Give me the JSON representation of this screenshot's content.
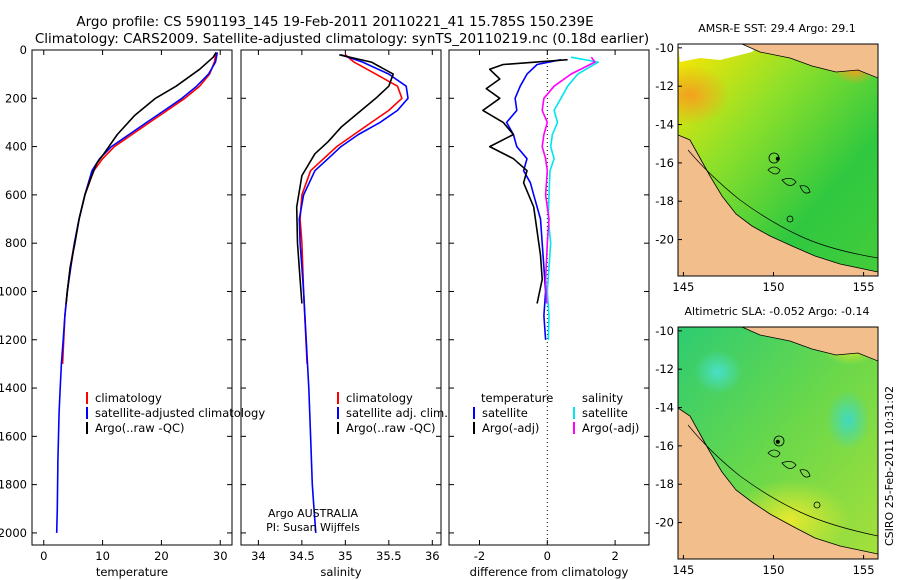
{
  "title": {
    "line1": "Argo profile: CS 5901193_145 19-Feb-2011 20110221_41 15.785S 150.239E",
    "line2": "Climatology: CARS2009. Satellite-adjusted climatology: synTS_20110219.nc (0.18d earlier)"
  },
  "colors": {
    "climatology": "#ff0000",
    "satellite": "#0000ff",
    "argo": "#000000",
    "satellite_salinity": "#00e5ee",
    "argo_salinity": "#ff00ff",
    "land": "#f2bf8c"
  },
  "chart_data": [
    {
      "id": "temperature",
      "type": "line",
      "xlabel": "temperature",
      "ylabel": "",
      "xlim": [
        -2,
        32
      ],
      "ylim": [
        2050,
        0
      ],
      "xticks": [
        0,
        10,
        20,
        30
      ],
      "yticks": [
        0,
        200,
        400,
        600,
        800,
        1000,
        1200,
        1400,
        1600,
        1800,
        2000
      ],
      "legend": [
        "climatology",
        "satellite-adjusted climatology",
        "Argo(..raw -QC)"
      ],
      "series": [
        {
          "name": "climatology",
          "color": "#ff0000",
          "x": [
            29.3,
            29.0,
            28.2,
            26.5,
            24.0,
            21.0,
            18.0,
            15.0,
            12.0,
            10.0,
            8.5,
            7.0,
            6.0,
            5.2,
            4.5,
            4.0,
            3.6,
            3.2
          ],
          "y": [
            10,
            50,
            100,
            150,
            200,
            250,
            300,
            350,
            400,
            450,
            500,
            600,
            700,
            800,
            900,
            1000,
            1100,
            1300
          ]
        },
        {
          "name": "satellite-adjusted climatology",
          "color": "#0000ff",
          "x": [
            29.5,
            29.2,
            28.0,
            26.0,
            23.5,
            20.5,
            17.5,
            14.5,
            11.5,
            9.5,
            8.2,
            7.0,
            6.0,
            5.2,
            4.6,
            4.0,
            3.6,
            3.3,
            3.0,
            2.8,
            2.6,
            2.4,
            2.3,
            2.2
          ],
          "y": [
            10,
            50,
            100,
            150,
            200,
            250,
            300,
            350,
            400,
            450,
            500,
            600,
            700,
            800,
            900,
            1000,
            1100,
            1200,
            1300,
            1400,
            1500,
            1700,
            1900,
            2000
          ]
        },
        {
          "name": "Argo(..raw -QC)",
          "color": "#000000",
          "x": [
            29.3,
            28.8,
            26.5,
            22.5,
            19.0,
            15.5,
            12.5,
            10.5,
            9.0,
            8.0,
            7.0,
            6.0,
            5.3,
            4.5,
            4.0,
            3.8
          ],
          "y": [
            10,
            30,
            80,
            150,
            200,
            270,
            350,
            420,
            470,
            530,
            600,
            700,
            800,
            900,
            1000,
            1050
          ]
        }
      ]
    },
    {
      "id": "salinity",
      "type": "line",
      "xlabel": "salinity",
      "ylabel": "",
      "xlim": [
        33.8,
        36.1
      ],
      "ylim": [
        2050,
        0
      ],
      "xticks": [
        34,
        34.5,
        35,
        35.5,
        36
      ],
      "yticks": [
        0,
        200,
        400,
        600,
        800,
        1000,
        1200,
        1400,
        1600,
        1800,
        2000
      ],
      "legend": [
        "climatology",
        "satellite adj. clim.",
        "Argo(..raw -QC)"
      ],
      "series": [
        {
          "name": "climatology",
          "color": "#ff0000",
          "x": [
            35.0,
            35.1,
            35.35,
            35.6,
            35.65,
            35.5,
            35.3,
            35.1,
            34.9,
            34.75,
            34.6,
            34.5,
            34.48,
            34.5,
            34.52,
            34.56
          ],
          "y": [
            20,
            50,
            100,
            150,
            200,
            250,
            300,
            350,
            400,
            450,
            500,
            600,
            700,
            800,
            1000,
            1300
          ]
        },
        {
          "name": "satellite adj. clim.",
          "color": "#0000ff",
          "x": [
            34.95,
            35.2,
            35.5,
            35.7,
            35.72,
            35.6,
            35.4,
            35.15,
            34.95,
            34.8,
            34.65,
            34.52,
            34.47,
            34.48,
            34.5,
            34.52,
            34.55,
            34.58,
            34.6,
            34.62,
            34.64,
            34.66
          ],
          "y": [
            20,
            50,
            100,
            150,
            200,
            250,
            300,
            350,
            400,
            450,
            500,
            600,
            700,
            800,
            900,
            1000,
            1200,
            1400,
            1600,
            1800,
            1900,
            2000
          ]
        },
        {
          "name": "Argo(..raw -QC)",
          "color": "#000000",
          "x": [
            34.93,
            35.3,
            35.55,
            35.5,
            35.35,
            35.15,
            34.95,
            34.8,
            34.65,
            34.5,
            34.44,
            34.45,
            34.48,
            34.5
          ],
          "y": [
            20,
            50,
            100,
            150,
            200,
            260,
            320,
            380,
            430,
            520,
            650,
            800,
            950,
            1050
          ]
        }
      ]
    },
    {
      "id": "difference",
      "type": "line",
      "xlabel": "difference from climatology",
      "ylabel": "",
      "xlim": [
        -2.9,
        3.0
      ],
      "ylim": [
        2050,
        0
      ],
      "xticks": [
        -2,
        0,
        2
      ],
      "yticks": [
        0,
        200,
        400,
        600,
        800,
        1000,
        1200,
        1400,
        1600,
        1800,
        2000
      ],
      "legend_groups": [
        {
          "heading": "temperature",
          "items": [
            "satellite",
            "Argo(-adj)"
          ]
        },
        {
          "heading": "salinity",
          "items": [
            "satellite",
            "Argo(-adj)"
          ]
        }
      ],
      "zero_line": 0,
      "series": [
        {
          "name": "temperature satellite",
          "color": "#0000ff",
          "x": [
            0.4,
            -0.3,
            -0.6,
            -0.8,
            -0.95,
            -0.9,
            -1.2,
            -1.0,
            -0.9,
            -0.6,
            -0.7,
            -0.5,
            -0.4,
            -0.2,
            -0.15,
            -0.1,
            -0.05,
            -0.1,
            -0.05
          ],
          "y": [
            40,
            60,
            100,
            150,
            200,
            250,
            300,
            350,
            400,
            450,
            500,
            550,
            600,
            700,
            800,
            900,
            1000,
            1100,
            1200
          ]
        },
        {
          "name": "temperature Argo(-adj)",
          "color": "#000000",
          "x": [
            0.6,
            -1.3,
            -1.7,
            -1.4,
            -1.8,
            -1.4,
            -1.9,
            -1.3,
            -1.0,
            -1.7,
            -1.0,
            -0.6,
            -0.7,
            -0.4,
            -0.3,
            -0.2,
            -0.15,
            -0.3
          ],
          "y": [
            40,
            60,
            80,
            120,
            160,
            200,
            250,
            300,
            350,
            400,
            450,
            500,
            550,
            650,
            750,
            850,
            950,
            1050
          ]
        },
        {
          "name": "salinity satellite",
          "color": "#00e5ee",
          "x": [
            0.7,
            1.5,
            0.9,
            0.6,
            0.4,
            0.2,
            0.3,
            0.15,
            0.1,
            0.2,
            0.08,
            0.05,
            0.03,
            0.1,
            0.05,
            0.0,
            0.05,
            0.03
          ],
          "y": [
            30,
            50,
            100,
            150,
            200,
            250,
            300,
            350,
            400,
            450,
            500,
            600,
            700,
            800,
            900,
            1000,
            1100,
            1200
          ]
        },
        {
          "name": "salinity Argo(-adj)",
          "color": "#ff00ff",
          "x": [
            1.3,
            1.4,
            0.7,
            0.2,
            -0.1,
            -0.15,
            0.0,
            -0.1,
            -0.15,
            -0.05,
            0.0,
            -0.05,
            0.05,
            0.0,
            -0.05,
            -0.02
          ],
          "y": [
            30,
            50,
            100,
            150,
            200,
            250,
            300,
            350,
            400,
            450,
            500,
            600,
            700,
            800,
            950,
            1050
          ]
        }
      ]
    },
    {
      "id": "sst_map",
      "type": "heatmap",
      "title": "AMSR-E SST: 29.4 Argo: 29.1",
      "xlim": [
        144.7,
        155.8
      ],
      "ylim": [
        -21.9,
        -9.8
      ],
      "xticks": [
        145,
        150,
        155
      ],
      "yticks": [
        -10,
        -12,
        -14,
        -16,
        -18,
        -20
      ],
      "profile_position": [
        150.239,
        -15.785
      ]
    },
    {
      "id": "sla_map",
      "type": "heatmap",
      "title": "Altimetric SLA: -0.052 Argo: -0.14",
      "xlim": [
        144.7,
        155.8
      ],
      "ylim": [
        -21.9,
        -9.8
      ],
      "xticks": [
        145,
        150,
        155
      ],
      "yticks": [
        -10,
        -12,
        -14,
        -16,
        -18,
        -20
      ],
      "profile_position": [
        150.239,
        -15.785
      ]
    }
  ],
  "annotations": {
    "argo_program": "Argo AUSTRALIA",
    "pi": "PI: Susan Wijffels",
    "timestamp": "CSIRO 25-Feb-2011 10:31:02"
  }
}
